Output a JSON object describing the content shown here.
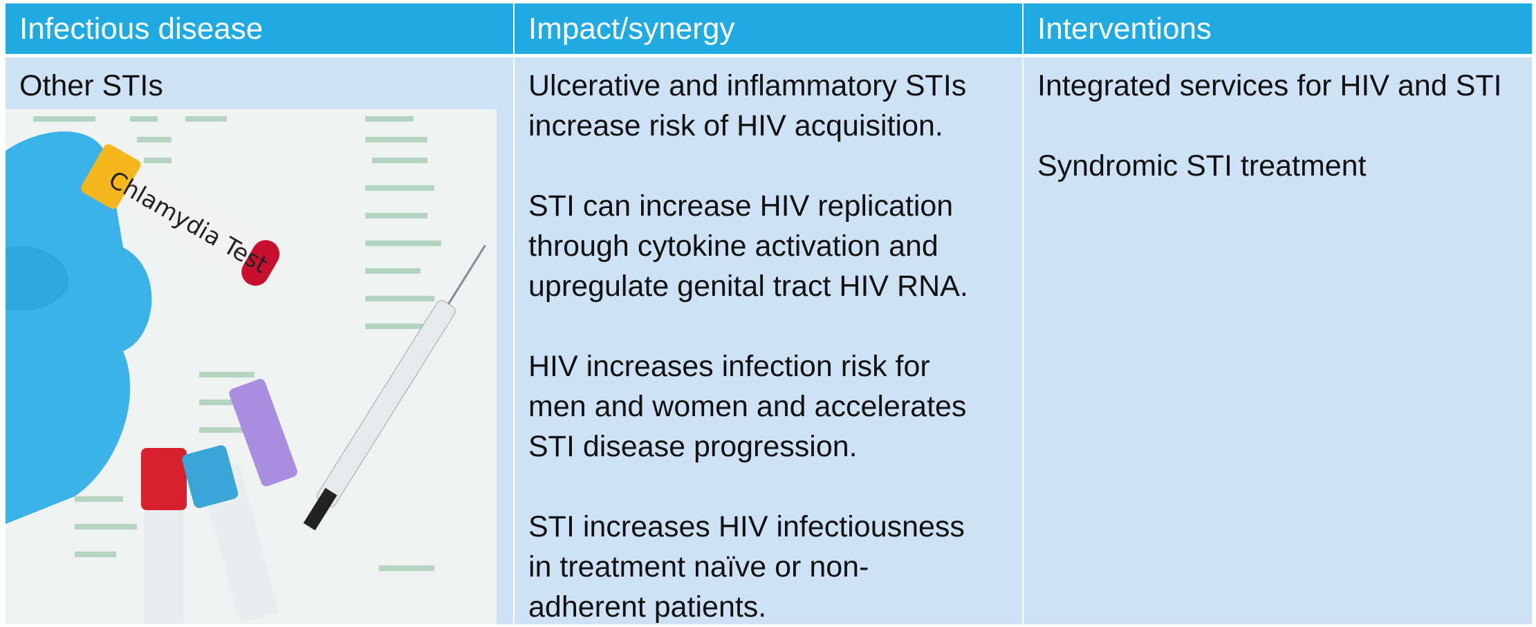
{
  "table": {
    "header": [
      "Infectious disease",
      "Impact/synergy",
      "Interventions"
    ],
    "rows": [
      [
        {
          "text": "Other STIs",
          "image": {
            "label": "Chlamydia Test"
          }
        },
        {
          "paragraphs": [
            [
              "Ulcerative and inflammatory STIs",
              "increase risk of HIV acquisition."
            ],
            [
              "STI can increase HIV replication",
              "through cytokine activation and",
              "upregulate genital tract HIV RNA."
            ],
            [
              "HIV increases infection risk for",
              "men and women and accelerates",
              "STI disease progression."
            ],
            [
              "STI increases HIV infectiousness",
              "in treatment naïve or non-",
              "adherent patients."
            ]
          ]
        },
        {
          "paragraphs": [
            [
              "Integrated services for HIV and STI"
            ],
            [
              "Syndromic STI treatment"
            ]
          ]
        }
      ]
    ]
  }
}
